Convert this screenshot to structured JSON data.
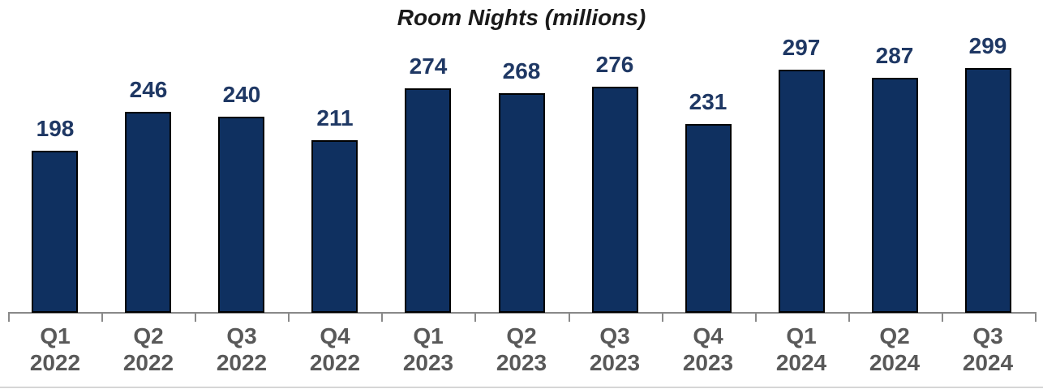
{
  "chart_data": {
    "type": "bar",
    "title": "Room Nights (millions)",
    "categories": [
      {
        "quarter": "Q1",
        "year": "2022"
      },
      {
        "quarter": "Q2",
        "year": "2022"
      },
      {
        "quarter": "Q3",
        "year": "2022"
      },
      {
        "quarter": "Q4",
        "year": "2022"
      },
      {
        "quarter": "Q1",
        "year": "2023"
      },
      {
        "quarter": "Q2",
        "year": "2023"
      },
      {
        "quarter": "Q3",
        "year": "2023"
      },
      {
        "quarter": "Q4",
        "year": "2023"
      },
      {
        "quarter": "Q1",
        "year": "2024"
      },
      {
        "quarter": "Q2",
        "year": "2024"
      },
      {
        "quarter": "Q3",
        "year": "2024"
      }
    ],
    "values": [
      198,
      246,
      240,
      211,
      274,
      268,
      276,
      231,
      297,
      287,
      299
    ],
    "value_labels": [
      "198",
      "246",
      "240",
      "211",
      "274",
      "268",
      "276",
      "231",
      "297",
      "287",
      "299"
    ],
    "xlabel": "",
    "ylabel": "",
    "ylim": [
      0,
      310
    ],
    "grid": false,
    "legend": false,
    "y_axis_visible": false,
    "colors": {
      "bar_fill": "#0F3060",
      "bar_border": "#000000",
      "value_label": "#1F3864",
      "axis_line": "#898989",
      "tick": "#898989",
      "x_label": "#595959",
      "title": "#1a1a1a",
      "baseline": "#D6D6D6",
      "background": "#FFFFFF"
    }
  }
}
